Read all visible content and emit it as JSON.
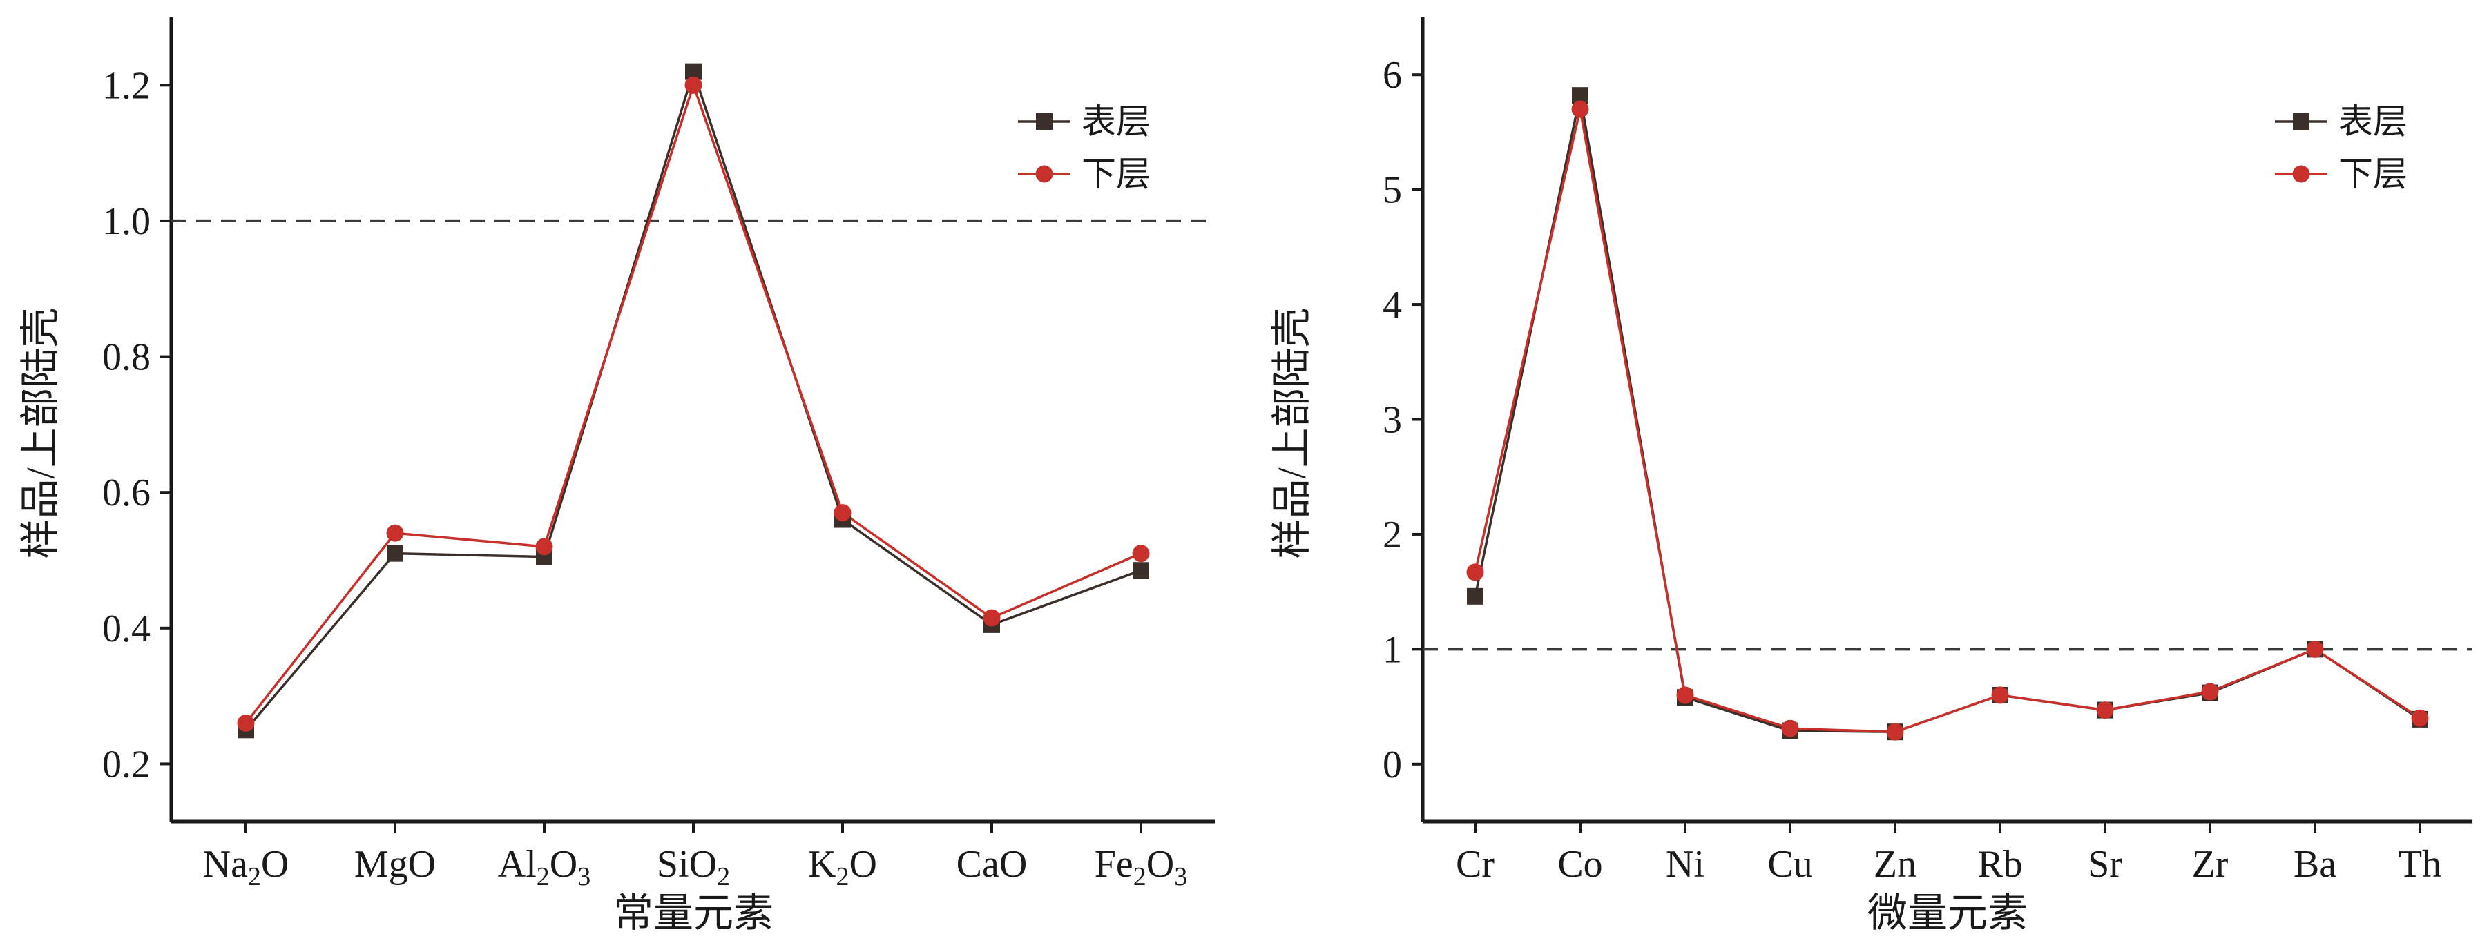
{
  "chart_data": [
    {
      "type": "line",
      "xlabel": "常量元素",
      "ylabel": "样品/上部陆壳",
      "categories": [
        {
          "base": "Na",
          "sub": "2",
          "tail": "O"
        },
        {
          "base": "MgO",
          "sub": "",
          "tail": ""
        },
        {
          "base": "Al",
          "sub": "2",
          "tail": "O",
          "sub2": "3"
        },
        {
          "base": "SiO",
          "sub": "2",
          "tail": ""
        },
        {
          "base": "K",
          "sub": "2",
          "tail": "O"
        },
        {
          "base": "CaO",
          "sub": "",
          "tail": ""
        },
        {
          "base": "Fe",
          "sub": "2",
          "tail": "O",
          "sub2": "3"
        }
      ],
      "ylim": [
        0.115,
        1.3
      ],
      "yticks": [
        0.2,
        0.4,
        0.6,
        0.8,
        1.0,
        1.2
      ],
      "ytick_labels": [
        "0.2",
        "0.4",
        "0.6",
        "0.8",
        "1.0",
        "1.2"
      ],
      "reference_line": 1.0,
      "legend_position": "top-right",
      "series": [
        {
          "name": "表层",
          "marker": "square",
          "color": "#3b2f2a",
          "values": [
            0.25,
            0.51,
            0.505,
            1.22,
            0.56,
            0.405,
            0.485
          ]
        },
        {
          "name": "下层",
          "marker": "circle",
          "color": "#c8312b",
          "values": [
            0.26,
            0.54,
            0.52,
            1.2,
            0.57,
            0.415,
            0.51
          ]
        }
      ]
    },
    {
      "type": "line",
      "xlabel": "微量元素",
      "ylabel": "样品/上部陆壳",
      "categories": [
        {
          "base": "Cr"
        },
        {
          "base": "Co"
        },
        {
          "base": "Ni"
        },
        {
          "base": "Cu"
        },
        {
          "base": "Zn"
        },
        {
          "base": "Rb"
        },
        {
          "base": "Sr"
        },
        {
          "base": "Zr"
        },
        {
          "base": "Ba"
        },
        {
          "base": "Th"
        }
      ],
      "ylim": [
        -0.5,
        6.5
      ],
      "yticks": [
        0,
        1,
        2,
        3,
        4,
        5,
        6
      ],
      "ytick_labels": [
        "0",
        "1",
        "2",
        "3",
        "4",
        "5",
        "6"
      ],
      "reference_line": 1.0,
      "legend_position": "top-right",
      "series": [
        {
          "name": "表层",
          "marker": "square",
          "color": "#3b2f2a",
          "values": [
            1.46,
            5.82,
            0.58,
            0.29,
            0.28,
            0.6,
            0.47,
            0.62,
            1.0,
            0.39
          ]
        },
        {
          "name": "下层",
          "marker": "circle",
          "color": "#c8312b",
          "values": [
            1.67,
            5.7,
            0.6,
            0.31,
            0.28,
            0.6,
            0.47,
            0.63,
            1.0,
            0.4
          ]
        }
      ]
    }
  ]
}
